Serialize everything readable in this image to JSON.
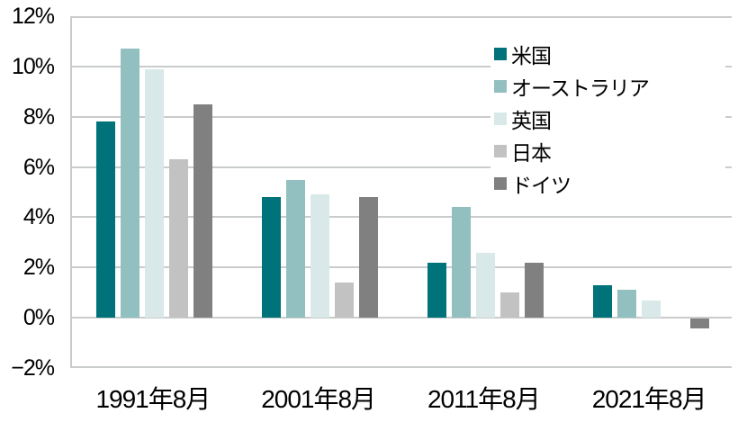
{
  "chart_data": {
    "type": "bar",
    "categories": [
      "1991年8月",
      "2001年8月",
      "2011年8月",
      "2021年8月"
    ],
    "series": [
      {
        "name": "米国",
        "color": "#00737A",
        "values": [
          7.8,
          4.8,
          2.2,
          1.3
        ]
      },
      {
        "name": "オーストラリア",
        "color": "#92C0C0",
        "values": [
          10.7,
          5.5,
          4.4,
          1.1
        ]
      },
      {
        "name": "英国",
        "color": "#D9E8E9",
        "values": [
          9.9,
          4.9,
          2.6,
          0.7
        ]
      },
      {
        "name": "日本",
        "color": "#C2C2C2",
        "values": [
          6.3,
          1.4,
          1.0,
          0.0
        ]
      },
      {
        "name": "ドイツ",
        "color": "#808080",
        "values": [
          8.5,
          4.8,
          2.2,
          -0.4
        ]
      }
    ],
    "y_axis": {
      "min": -2,
      "max": 12,
      "step": 2,
      "tick_values": [
        12,
        10,
        8,
        6,
        4,
        2,
        0,
        -2
      ],
      "tick_labels": [
        "12%",
        "10%",
        "8%",
        "6%",
        "4%",
        "2%",
        "0%",
        "−2%"
      ]
    },
    "title": "",
    "xlabel": "",
    "ylabel": "",
    "grid": true,
    "legend_position": "top-right"
  },
  "styles": {
    "background": "#FFFFFF",
    "grid_color": "#C9CCCC",
    "text_color": "#000000"
  }
}
